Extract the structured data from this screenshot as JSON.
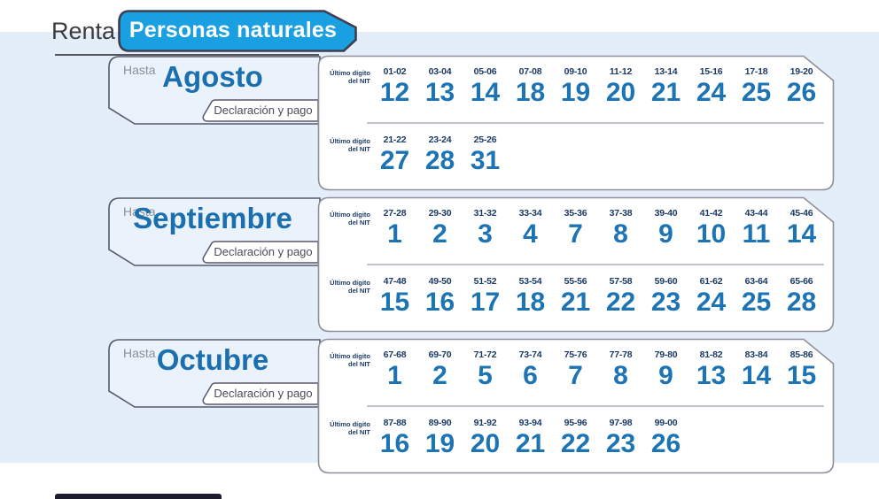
{
  "header": {
    "prefix": "Renta -",
    "tab_label": "Personas naturales"
  },
  "nit_label": {
    "line1": "Último dígito",
    "line2": "del NIT"
  },
  "months": [
    {
      "hasta": "Hasta",
      "name": "Agosto",
      "action": "Declaración y pago",
      "rows": [
        {
          "entries": [
            {
              "nit": "01-02",
              "day": "12"
            },
            {
              "nit": "03-04",
              "day": "13"
            },
            {
              "nit": "05-06",
              "day": "14"
            },
            {
              "nit": "07-08",
              "day": "18"
            },
            {
              "nit": "09-10",
              "day": "19"
            },
            {
              "nit": "11-12",
              "day": "20"
            },
            {
              "nit": "13-14",
              "day": "21"
            },
            {
              "nit": "15-16",
              "day": "24"
            },
            {
              "nit": "17-18",
              "day": "25"
            },
            {
              "nit": "19-20",
              "day": "26"
            }
          ]
        },
        {
          "entries": [
            {
              "nit": "21-22",
              "day": "27"
            },
            {
              "nit": "23-24",
              "day": "28"
            },
            {
              "nit": "25-26",
              "day": "31"
            }
          ]
        }
      ]
    },
    {
      "hasta": "Hasta",
      "name": "Septiembre",
      "action": "Declaración y pago",
      "rows": [
        {
          "entries": [
            {
              "nit": "27-28",
              "day": "1"
            },
            {
              "nit": "29-30",
              "day": "2"
            },
            {
              "nit": "31-32",
              "day": "3"
            },
            {
              "nit": "33-34",
              "day": "4"
            },
            {
              "nit": "35-36",
              "day": "7"
            },
            {
              "nit": "37-38",
              "day": "8"
            },
            {
              "nit": "39-40",
              "day": "9"
            },
            {
              "nit": "41-42",
              "day": "10"
            },
            {
              "nit": "43-44",
              "day": "11"
            },
            {
              "nit": "45-46",
              "day": "14"
            }
          ]
        },
        {
          "entries": [
            {
              "nit": "47-48",
              "day": "15"
            },
            {
              "nit": "49-50",
              "day": "16"
            },
            {
              "nit": "51-52",
              "day": "17"
            },
            {
              "nit": "53-54",
              "day": "18"
            },
            {
              "nit": "55-56",
              "day": "21"
            },
            {
              "nit": "57-58",
              "day": "22"
            },
            {
              "nit": "59-60",
              "day": "23"
            },
            {
              "nit": "61-62",
              "day": "24"
            },
            {
              "nit": "63-64",
              "day": "25"
            },
            {
              "nit": "65-66",
              "day": "28"
            }
          ]
        }
      ]
    },
    {
      "hasta": "Hasta",
      "name": "Octubre",
      "action": "Declaración y pago",
      "rows": [
        {
          "entries": [
            {
              "nit": "67-68",
              "day": "1"
            },
            {
              "nit": "69-70",
              "day": "2"
            },
            {
              "nit": "71-72",
              "day": "5"
            },
            {
              "nit": "73-74",
              "day": "6"
            },
            {
              "nit": "75-76",
              "day": "7"
            },
            {
              "nit": "77-78",
              "day": "8"
            },
            {
              "nit": "79-80",
              "day": "9"
            },
            {
              "nit": "81-82",
              "day": "13"
            },
            {
              "nit": "83-84",
              "day": "14"
            },
            {
              "nit": "85-86",
              "day": "15"
            }
          ]
        },
        {
          "entries": [
            {
              "nit": "87-88",
              "day": "16"
            },
            {
              "nit": "89-90",
              "day": "19"
            },
            {
              "nit": "91-92",
              "day": "20"
            },
            {
              "nit": "93-94",
              "day": "21"
            },
            {
              "nit": "95-96",
              "day": "22"
            },
            {
              "nit": "97-98",
              "day": "23"
            },
            {
              "nit": "99-00",
              "day": "26"
            }
          ]
        }
      ]
    }
  ],
  "colors": {
    "tab_blue": "#1aa0e1",
    "panel_blue": "#e4eef8",
    "day_blue": "#1c74b4",
    "nit_navy": "#1c3a66",
    "month_blue": "#1c6fae",
    "dark_border": "#3e3e50"
  }
}
